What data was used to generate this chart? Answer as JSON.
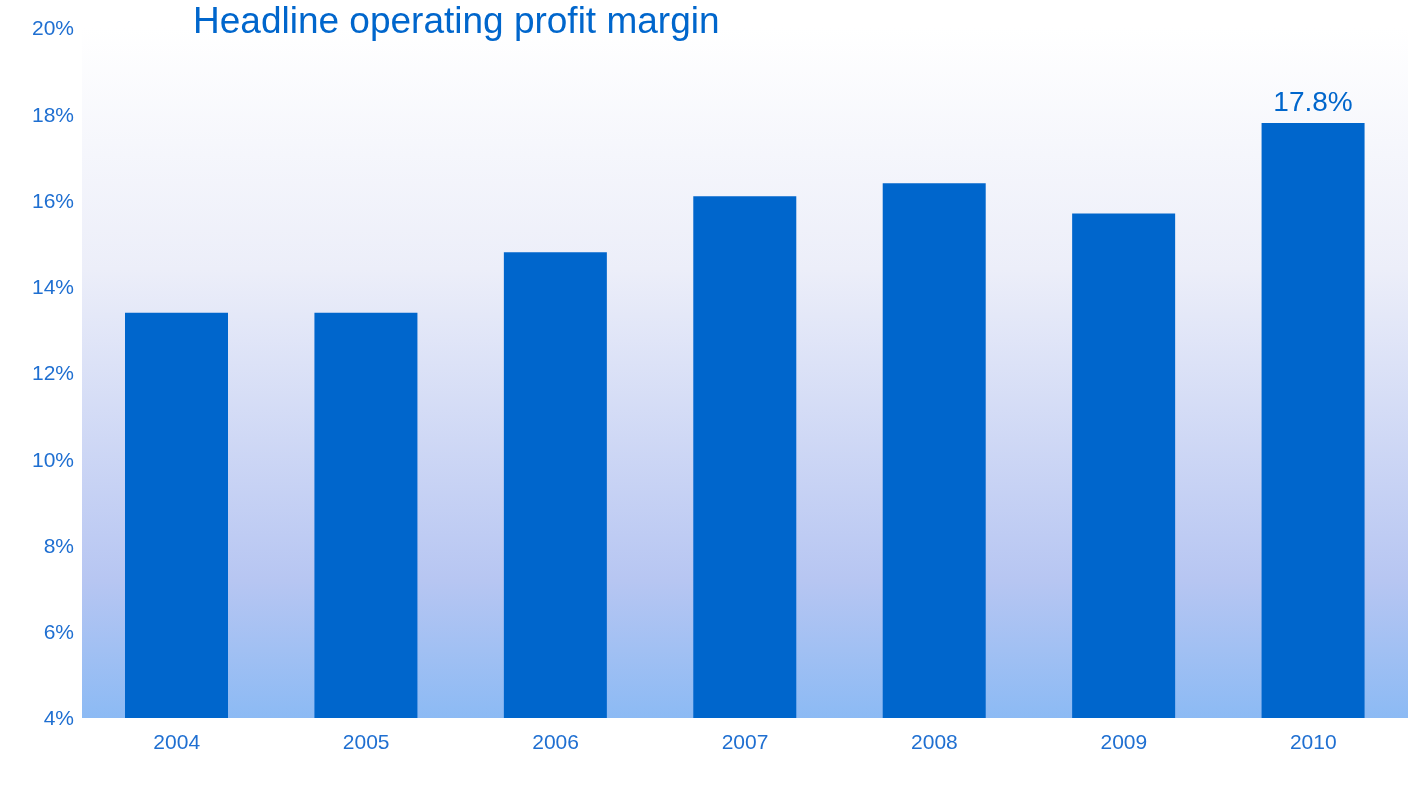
{
  "chart_data": {
    "type": "bar",
    "title": "Headline operating profit margin",
    "categories": [
      "2004",
      "2005",
      "2006",
      "2007",
      "2008",
      "2009",
      "2010"
    ],
    "values": [
      13.4,
      13.4,
      14.8,
      16.1,
      16.4,
      15.7,
      17.8
    ],
    "value_labels": [
      null,
      null,
      null,
      null,
      null,
      null,
      "17.8%"
    ],
    "color": "#0066cc",
    "ylim": [
      4,
      20
    ],
    "yticks": [
      {
        "value": 4,
        "label": "4%"
      },
      {
        "value": 6,
        "label": "6%"
      },
      {
        "value": 8,
        "label": "8%"
      },
      {
        "value": 10,
        "label": "10%"
      },
      {
        "value": 12,
        "label": "12%"
      },
      {
        "value": 14,
        "label": "14%"
      },
      {
        "value": 16,
        "label": "16%"
      },
      {
        "value": 18,
        "label": "18%"
      },
      {
        "value": 20,
        "label": "20%"
      }
    ],
    "grid": false,
    "legend": false
  }
}
